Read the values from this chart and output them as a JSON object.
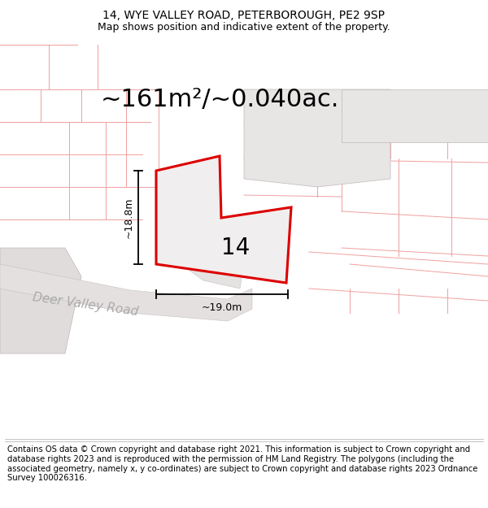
{
  "title_line1": "14, WYE VALLEY ROAD, PETERBOROUGH, PE2 9SP",
  "title_line2": "Map shows position and indicative extent of the property.",
  "area_text": "~161m²/~0.040ac.",
  "label_number": "14",
  "dim_height": "~18.8m",
  "dim_width": "~19.0m",
  "street_label": "Deer Valley Road",
  "footer_text": "Contains OS data © Crown copyright and database right 2021. This information is subject to Crown copyright and database rights 2023 and is reproduced with the permission of HM Land Registry. The polygons (including the associated geometry, namely x, y co-ordinates) are subject to Crown copyright and database rights 2023 Ordnance Survey 100026316.",
  "map_bg_color": "#ffffff",
  "property_fill": "#f0eeee",
  "property_edge": "#dd0000",
  "neighbor_fill": "#e8e4e4",
  "neighbor_edge": "#ccaaaa",
  "road_fill": "#eeecec",
  "plot_line_color": "#f0a0a0",
  "title_fontsize": 10,
  "subtitle_fontsize": 9,
  "area_fontsize": 22,
  "label_fontsize": 20,
  "dim_fontsize": 9,
  "footer_fontsize": 7.2,
  "street_fontsize": 11
}
